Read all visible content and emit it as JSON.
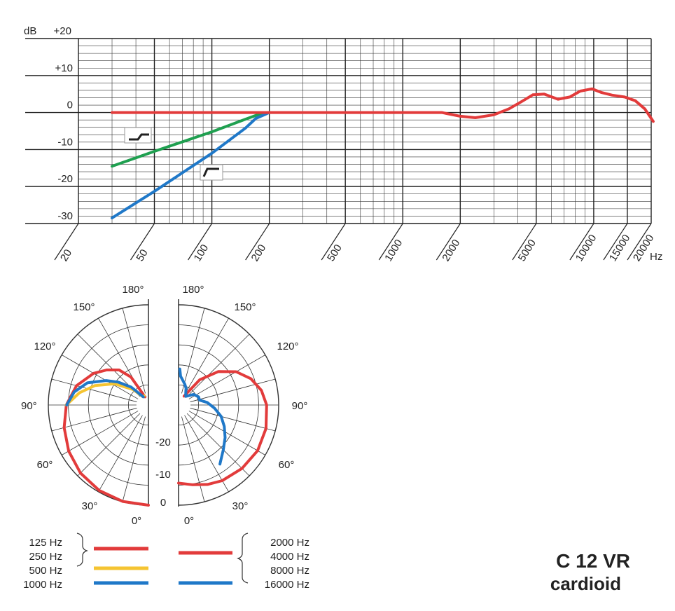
{
  "chart_data": [
    {
      "type": "line",
      "id": "frequency-response",
      "ylabel": "dB",
      "xlabel": "Hz",
      "x_scale": "log",
      "xlim": [
        20,
        20000
      ],
      "ylim": [
        -30,
        20
      ],
      "y_ticks": [
        {
          "value": 20,
          "label": "+20"
        },
        {
          "value": 10,
          "label": "+10"
        },
        {
          "value": 0,
          "label": "0"
        },
        {
          "value": -10,
          "label": "-10"
        },
        {
          "value": -20,
          "label": "-20"
        },
        {
          "value": -30,
          "label": "-30"
        }
      ],
      "x_ticks": [
        {
          "value": 20,
          "label": "20"
        },
        {
          "value": 50,
          "label": "50"
        },
        {
          "value": 100,
          "label": "100"
        },
        {
          "value": 200,
          "label": "200"
        },
        {
          "value": 500,
          "label": "500"
        },
        {
          "value": 1000,
          "label": "1000"
        },
        {
          "value": 2000,
          "label": "2000"
        },
        {
          "value": 5000,
          "label": "5000"
        },
        {
          "value": 10000,
          "label": "10000"
        },
        {
          "value": 15000,
          "label": "15000"
        },
        {
          "value": 20000,
          "label": "20000"
        }
      ],
      "grid": true,
      "series": [
        {
          "color": "#e23b3b",
          "points": [
            [
              30,
              0
            ],
            [
              100,
              0
            ],
            [
              200,
              0
            ],
            [
              500,
              0
            ],
            [
              1000,
              0
            ],
            [
              1600,
              0
            ],
            [
              2000,
              -1
            ],
            [
              2400,
              -1.4
            ],
            [
              3000,
              -0.6
            ],
            [
              3600,
              1
            ],
            [
              4200,
              3
            ],
            [
              4800,
              4.8
            ],
            [
              5500,
              5
            ],
            [
              6500,
              3.6
            ],
            [
              7500,
              4.2
            ],
            [
              8500,
              5.8
            ],
            [
              9800,
              6.4
            ],
            [
              11000,
              5.4
            ],
            [
              12500,
              4.7
            ],
            [
              14500,
              4.2
            ],
            [
              16500,
              3.2
            ],
            [
              18500,
              1
            ],
            [
              20500,
              -2.4
            ]
          ]
        },
        {
          "color": "#1fa050",
          "points": [
            [
              30,
              -14.5
            ],
            [
              50,
              -10.5
            ],
            [
              100,
              -5.2
            ],
            [
              150,
              -1.8
            ],
            [
              180,
              -0.3
            ],
            [
              200,
              0
            ]
          ]
        },
        {
          "color": "#1f78c8",
          "points": [
            [
              30,
              -28.5
            ],
            [
              50,
              -21.3
            ],
            [
              100,
              -11
            ],
            [
              150,
              -4.2
            ],
            [
              170,
              -1.6
            ],
            [
              200,
              0
            ]
          ]
        }
      ],
      "filter_icons": [
        "low-cut-icon",
        "roll-off-icon"
      ]
    },
    {
      "type": "polar",
      "id": "polar-pattern",
      "angle_labels": [
        {
          "value": 0,
          "label": "0°"
        },
        {
          "value": 30,
          "label": "30°"
        },
        {
          "value": 60,
          "label": "60°"
        },
        {
          "value": 90,
          "label": "90°"
        },
        {
          "value": 120,
          "label": "120°"
        },
        {
          "value": 150,
          "label": "150°"
        },
        {
          "value": 180,
          "label": "180°"
        }
      ],
      "left_partial_angle_label": "90°",
      "radial_labels": [
        {
          "value": 0,
          "label": "0"
        },
        {
          "value": -10,
          "label": "-10"
        },
        {
          "value": -20,
          "label": "-20"
        }
      ],
      "rlim": [
        -25,
        0
      ],
      "rings": [
        0,
        -5,
        -10,
        -15,
        -20,
        -25
      ],
      "left_series": [
        {
          "color": "#e23b3b",
          "points": [
            [
              0,
              0
            ],
            [
              15,
              -0.1
            ],
            [
              30,
              -0.4
            ],
            [
              45,
              -1
            ],
            [
              60,
              -2
            ],
            [
              75,
              -3.2
            ],
            [
              90,
              -4.5
            ],
            [
              105,
              -6.4
            ],
            [
              120,
              -9.2
            ],
            [
              130,
              -11.4
            ],
            [
              140,
              -13.6
            ],
            [
              148,
              -16.8
            ],
            [
              157,
              -22.8
            ]
          ]
        },
        {
          "color": "#f5c431",
          "points": [
            [
              90,
              -4.5
            ],
            [
              100,
              -7.5
            ],
            [
              110,
              -10.8
            ],
            [
              122,
              -15
            ],
            [
              135,
              -19.5
            ],
            [
              146,
              -22.5
            ],
            [
              155,
              -22.5
            ]
          ]
        },
        {
          "color": "#1f78c8",
          "points": [
            [
              90,
              -4.6
            ],
            [
              100,
              -6.2
            ],
            [
              110,
              -8.8
            ],
            [
              120,
              -12.8
            ],
            [
              127,
              -15.5
            ],
            [
              136,
              -18.8
            ],
            [
              148,
              -22.6
            ]
          ]
        }
      ],
      "right_series": [
        {
          "color": "#e23b3b",
          "points": [
            [
              0,
              -5.5
            ],
            [
              10,
              -4.8
            ],
            [
              20,
              -3.9
            ],
            [
              30,
              -3.2
            ],
            [
              45,
              -2.6
            ],
            [
              60,
              -2.2
            ],
            [
              75,
              -2.4
            ],
            [
              90,
              -3
            ],
            [
              100,
              -4
            ],
            [
              110,
              -5.8
            ],
            [
              120,
              -8.4
            ],
            [
              130,
              -12
            ],
            [
              140,
              -16.8
            ],
            [
              148,
              -22.4
            ]
          ]
        },
        {
          "color": "#1f78c8",
          "points": [
            [
              35,
              -7
            ],
            [
              45,
              -9.2
            ],
            [
              55,
              -10.8
            ],
            [
              65,
              -12.4
            ],
            [
              75,
              -14
            ],
            [
              85,
              -16
            ],
            [
              95,
              -17.8
            ],
            [
              103,
              -19.6
            ],
            [
              112,
              -19.6
            ],
            [
              125,
              -20.4
            ],
            [
              140,
              -22.2
            ],
            [
              150,
              -21.4
            ],
            [
              156,
              -20.4
            ],
            [
              163,
              -19.6
            ],
            [
              170,
              -18.8
            ],
            [
              176,
              -17.8
            ],
            [
              178,
              -16
            ]
          ]
        }
      ]
    }
  ],
  "legend": {
    "left_labels": [
      "125 Hz",
      "250 Hz",
      "500 Hz",
      "1000 Hz"
    ],
    "right_labels": [
      "2000 Hz",
      "4000 Hz",
      "8000 Hz",
      "16000 Hz"
    ],
    "left_swatches": [
      "#e23b3b",
      "#f5c431",
      "#1f78c8"
    ],
    "right_swatches": [
      "#e23b3b",
      "#1f78c8"
    ]
  },
  "title": {
    "model": "C 12 VR",
    "pattern": "cardioid"
  }
}
